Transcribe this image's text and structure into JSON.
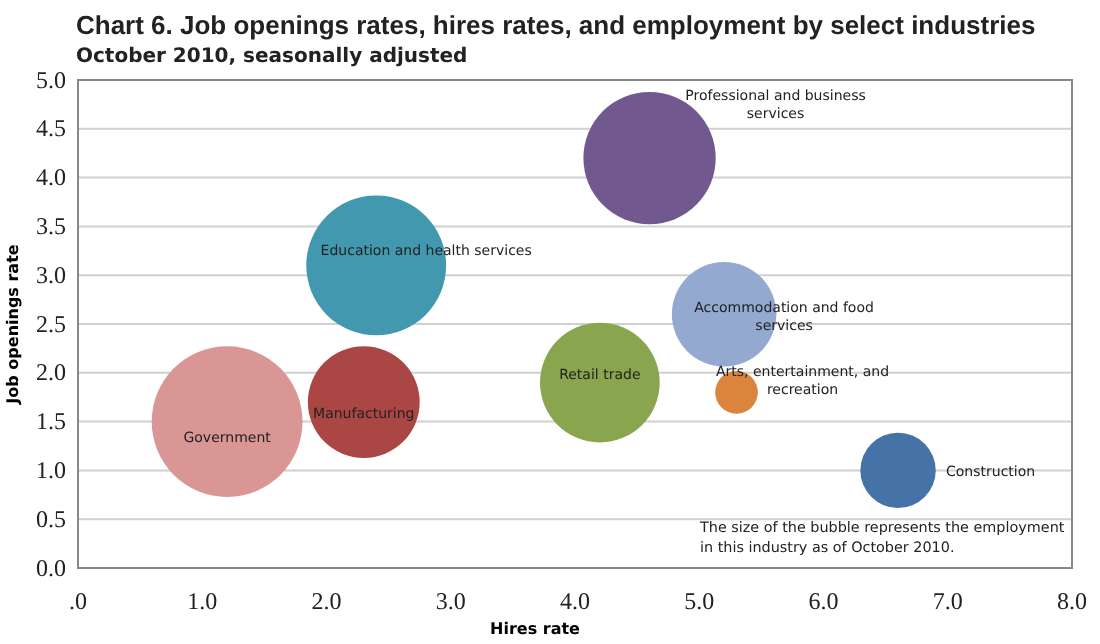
{
  "chart_data": {
    "type": "bubble",
    "title": "Chart 6. Job openings rates, hires rates, and employment by select industries",
    "subtitle": "October 2010, seasonally adjusted",
    "xlabel": "Hires rate",
    "ylabel": "Job openings rate",
    "series": [
      {
        "name": "Government",
        "color": "#d99694",
        "x": [
          1.2
        ],
        "values": [
          1.5
        ],
        "sizes": [
          1
        ]
      },
      {
        "name": "Manufacturing",
        "color": "#aa4643",
        "x": [
          2.3
        ],
        "values": [
          1.7
        ],
        "sizes": [
          0.55
        ]
      },
      {
        "name": "Education and health services",
        "color": "#4198af",
        "x": [
          2.4
        ],
        "values": [
          3.1
        ],
        "sizes": [
          0.86
        ]
      },
      {
        "name": "Retail trade",
        "color": "#89a54e",
        "x": [
          4.2
        ],
        "values": [
          1.9
        ],
        "sizes": [
          0.63
        ]
      },
      {
        "name": "Professional and business services",
        "color": "#71588f",
        "x": [
          4.6
        ],
        "values": [
          4.2
        ],
        "sizes": [
          0.77
        ]
      },
      {
        "name": "Accommodation and food services",
        "color": "#93a9cf",
        "x": [
          5.2
        ],
        "values": [
          2.6
        ],
        "sizes": [
          0.48
        ]
      },
      {
        "name": "Arts, entertainment, and recreation",
        "color": "#db843d",
        "x": [
          5.3
        ],
        "values": [
          1.8
        ],
        "sizes": [
          0.08
        ]
      },
      {
        "name": "Construction",
        "color": "#4572a7",
        "x": [
          6.6
        ],
        "values": [
          1.0
        ],
        "sizes": [
          0.25
        ]
      }
    ],
    "xlim": [
      0,
      8
    ],
    "xticks": [
      {
        "value": 0,
        "label": ".0"
      },
      {
        "value": 1,
        "label": "1.0"
      },
      {
        "value": 2,
        "label": "2.0"
      },
      {
        "value": 3,
        "label": "3.0"
      },
      {
        "value": 4,
        "label": "4.0"
      },
      {
        "value": 5,
        "label": "5.0"
      },
      {
        "value": 6,
        "label": "6.0"
      },
      {
        "value": 7,
        "label": "7.0"
      },
      {
        "value": 8,
        "label": "8.0"
      }
    ],
    "ylim": [
      0,
      5
    ],
    "yticks": [
      {
        "value": 0,
        "label": "0.0"
      },
      {
        "value": 0.5,
        "label": "0.5"
      },
      {
        "value": 1,
        "label": "1.0"
      },
      {
        "value": 1.5,
        "label": "1.5"
      },
      {
        "value": 2,
        "label": "2.0"
      },
      {
        "value": 2.5,
        "label": "2.5"
      },
      {
        "value": 3,
        "label": "3.0"
      },
      {
        "value": 3.5,
        "label": "3.5"
      },
      {
        "value": 4,
        "label": "4.0"
      },
      {
        "value": 4.5,
        "label": "4.5"
      },
      {
        "value": 5,
        "label": "5.0"
      }
    ],
    "grid": "y",
    "annotations": [
      "The size of the bubble represents the employment in this industry as of October 2010."
    ]
  }
}
